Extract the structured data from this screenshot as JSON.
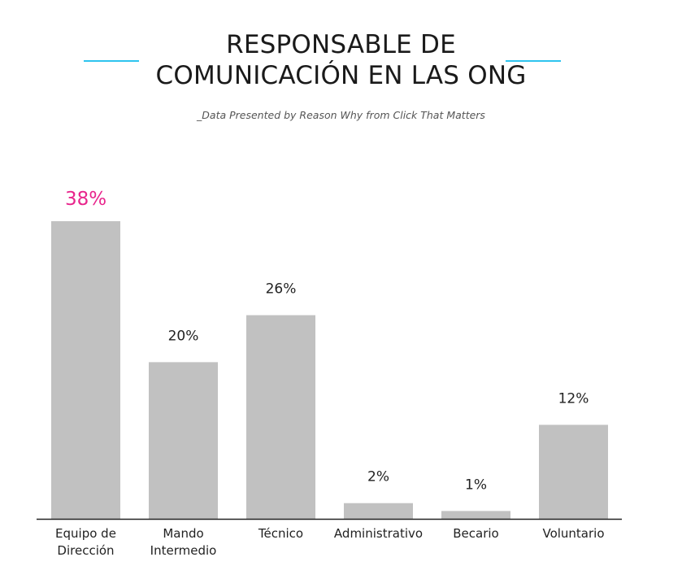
{
  "chart_data": {
    "type": "bar",
    "title_lines": [
      "RESPONSABLE DE",
      "COMUNICACIÓN EN LAS ONG"
    ],
    "subtitle": "_Data Presented by Reason Why from Click That Matters",
    "categories": [
      [
        "Equipo de",
        "Dirección"
      ],
      [
        "Mando",
        "Intermedio"
      ],
      [
        "Técnico"
      ],
      [
        "Administrativo"
      ],
      [
        "Becario"
      ],
      [
        "Voluntario"
      ]
    ],
    "values": [
      38,
      20,
      26,
      2,
      1,
      12
    ],
    "value_labels": [
      "38%",
      "20%",
      "26%",
      "2%",
      "1%",
      "12%"
    ],
    "highlight_index": 0,
    "ylim": [
      0,
      38
    ],
    "grid": false,
    "colors": {
      "bar": "#c1c1c1",
      "highlight_label": "#e8258c",
      "accent_line": "#2ec4ef",
      "axis": "#222222"
    }
  }
}
